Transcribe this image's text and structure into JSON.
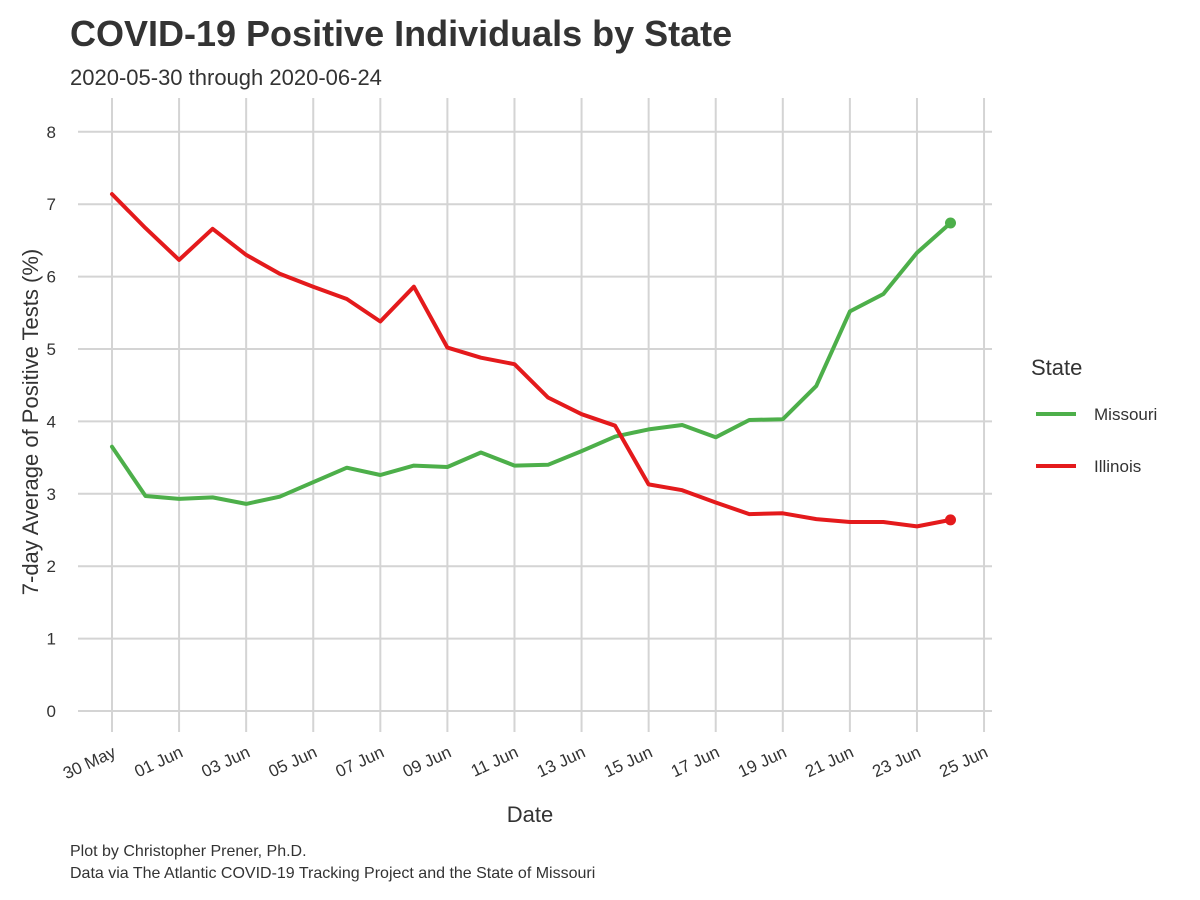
{
  "chart_data": {
    "type": "line",
    "title": "COVID-19 Positive Individuals by State",
    "subtitle": "2020-05-30 through 2020-06-24",
    "xlabel": "Date",
    "ylabel": "7-day Average of Positive Tests (%)",
    "caption": [
      "Plot by Christopher Prener, Ph.D.",
      "Data via The Atlantic COVID-19 Tracking Project and the State of Missouri"
    ],
    "legend_title": "State",
    "legend_position": "right",
    "grid": true,
    "ylim": [
      0,
      8
    ],
    "y_ticks": [
      0,
      1,
      2,
      3,
      4,
      5,
      6,
      7,
      8
    ],
    "x_ticks": [
      "30 May",
      "01 Jun",
      "03 Jun",
      "05 Jun",
      "07 Jun",
      "09 Jun",
      "11 Jun",
      "13 Jun",
      "15 Jun",
      "17 Jun",
      "19 Jun",
      "21 Jun",
      "23 Jun",
      "25 Jun"
    ],
    "x_tick_dates": [
      "2020-05-30",
      "2020-06-01",
      "2020-06-03",
      "2020-06-05",
      "2020-06-07",
      "2020-06-09",
      "2020-06-11",
      "2020-06-13",
      "2020-06-15",
      "2020-06-17",
      "2020-06-19",
      "2020-06-21",
      "2020-06-23",
      "2020-06-25"
    ],
    "x": [
      "2020-05-30",
      "2020-05-31",
      "2020-06-01",
      "2020-06-02",
      "2020-06-03",
      "2020-06-04",
      "2020-06-05",
      "2020-06-06",
      "2020-06-07",
      "2020-06-08",
      "2020-06-09",
      "2020-06-10",
      "2020-06-11",
      "2020-06-12",
      "2020-06-13",
      "2020-06-14",
      "2020-06-15",
      "2020-06-16",
      "2020-06-17",
      "2020-06-18",
      "2020-06-19",
      "2020-06-20",
      "2020-06-21",
      "2020-06-22",
      "2020-06-23",
      "2020-06-24"
    ],
    "series": [
      {
        "name": "Missouri",
        "color": "#4daf4a",
        "values": [
          3.65,
          2.97,
          2.93,
          2.95,
          2.86,
          2.96,
          3.16,
          3.36,
          3.26,
          3.39,
          3.37,
          3.57,
          3.39,
          3.4,
          3.59,
          3.79,
          3.89,
          3.95,
          3.78,
          4.02,
          4.03,
          4.49,
          5.52,
          5.76,
          6.33,
          6.74
        ]
      },
      {
        "name": "Illinois",
        "color": "#e41a1c",
        "values": [
          7.14,
          6.67,
          6.23,
          6.66,
          6.3,
          6.04,
          5.86,
          5.69,
          5.38,
          5.86,
          5.02,
          4.88,
          4.79,
          4.33,
          4.1,
          3.94,
          3.13,
          3.05,
          2.88,
          2.72,
          2.73,
          2.65,
          2.61,
          2.61,
          2.55,
          2.64
        ]
      }
    ]
  }
}
